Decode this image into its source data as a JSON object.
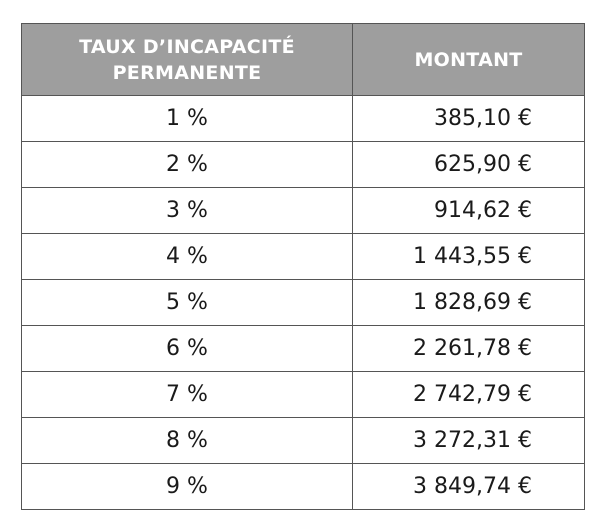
{
  "table": {
    "headers": {
      "rate": "TAUX D’INCAPACITÉ PERMANENTE",
      "amount": "MONTANT"
    },
    "rows": [
      {
        "rate": "1 %",
        "amount": "385,10 €"
      },
      {
        "rate": "2 %",
        "amount": "625,90 €"
      },
      {
        "rate": "3 %",
        "amount": "914,62 €"
      },
      {
        "rate": "4 %",
        "amount": "1 443,55 €"
      },
      {
        "rate": "5 %",
        "amount": "1 828,69 €"
      },
      {
        "rate": "6 %",
        "amount": "2 261,78 €"
      },
      {
        "rate": "7 %",
        "amount": "2 742,79 €"
      },
      {
        "rate": "8 %",
        "amount": "3 272,31 €"
      },
      {
        "rate": "9 %",
        "amount": "3 849,74 €"
      }
    ]
  }
}
